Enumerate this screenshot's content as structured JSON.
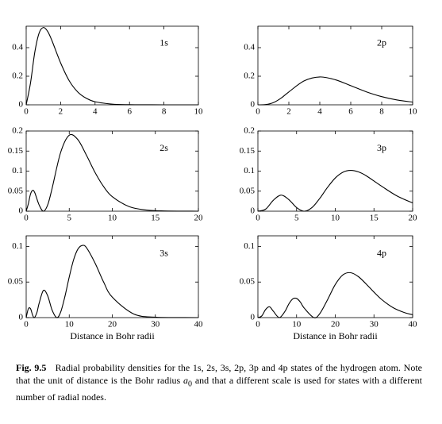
{
  "chart_data": [
    {
      "type": "line",
      "annotation": "1s",
      "color": "#000000",
      "x": [
        0,
        0.25,
        0.5,
        0.75,
        1,
        1.25,
        1.5,
        2,
        2.5,
        3,
        3.5,
        4,
        5,
        6,
        7,
        8,
        10
      ],
      "values": [
        0,
        0.152,
        0.368,
        0.502,
        0.541,
        0.513,
        0.448,
        0.293,
        0.168,
        0.089,
        0.045,
        0.0215,
        0.0045,
        0.0009,
        0.0002,
        0,
        0
      ],
      "xlim": [
        0,
        10
      ],
      "xticks": [
        0,
        2,
        4,
        6,
        8,
        10
      ],
      "ylim": [
        0,
        0.55
      ],
      "yticks": [
        0,
        0.2,
        0.4
      ]
    },
    {
      "type": "line",
      "annotation": "2p",
      "color": "#000000",
      "x": [
        0,
        0.5,
        1,
        1.5,
        2,
        3,
        4,
        5,
        6,
        7,
        8,
        9,
        10
      ],
      "values": [
        0,
        0.0016,
        0.0153,
        0.0471,
        0.0902,
        0.168,
        0.195,
        0.1755,
        0.1339,
        0.0912,
        0.0573,
        0.0337,
        0.0189
      ],
      "xlim": [
        0,
        10
      ],
      "xticks": [
        0,
        2,
        4,
        6,
        8,
        10
      ],
      "ylim": [
        0,
        0.55
      ],
      "yticks": [
        0,
        0.2,
        0.4
      ]
    },
    {
      "type": "line",
      "annotation": "2s",
      "color": "#000000",
      "x": [
        0,
        0.25,
        0.5,
        0.75,
        1,
        1.5,
        2,
        2.5,
        3,
        4,
        5,
        6,
        7,
        8,
        9,
        10,
        12,
        14,
        16,
        20
      ],
      "values": [
        0,
        0.0186,
        0.0426,
        0.0519,
        0.046,
        0.0157,
        0,
        0.016,
        0.056,
        0.1465,
        0.1895,
        0.1785,
        0.1396,
        0.0965,
        0.0612,
        0.0363,
        0.0111,
        0.0029,
        0.0007,
        0
      ],
      "xlim": [
        0,
        20
      ],
      "xticks": [
        0,
        5,
        10,
        15,
        20
      ],
      "ylim": [
        0,
        0.2
      ],
      "yticks": [
        0,
        0.05,
        0.1,
        0.15,
        0.2
      ]
    },
    {
      "type": "line",
      "annotation": "3p",
      "color": "#000000",
      "x": [
        0,
        1,
        2,
        3,
        4,
        5,
        6,
        7,
        8,
        9,
        10,
        11,
        12,
        13,
        14,
        16,
        18,
        20
      ],
      "values": [
        0,
        0.0052,
        0.0274,
        0.0401,
        0.0289,
        0.0091,
        0,
        0.0092,
        0.0321,
        0.0595,
        0.0828,
        0.0973,
        0.1018,
        0.098,
        0.0884,
        0.0622,
        0.0378,
        0.0207
      ],
      "xlim": [
        0,
        20
      ],
      "xticks": [
        0,
        5,
        10,
        15,
        20
      ],
      "ylim": [
        0,
        0.2
      ],
      "yticks": [
        0,
        0.05,
        0.1,
        0.15,
        0.2
      ]
    },
    {
      "type": "line",
      "annotation": "3s",
      "xlabel": "Distance in Bohr radii",
      "color": "#000000",
      "x": [
        0,
        0.5,
        1,
        1.5,
        1.9,
        2.5,
        3,
        4,
        5,
        6,
        7.1,
        8,
        9,
        10,
        11,
        12,
        13,
        14,
        16,
        18,
        20,
        25,
        30,
        35,
        40
      ],
      "values": [
        0,
        0.0125,
        0.0126,
        0.0034,
        0,
        0.0073,
        0.02,
        0.0382,
        0.0306,
        0.0109,
        0,
        0.0076,
        0.0298,
        0.0571,
        0.0811,
        0.0962,
        0.1014,
        0.0983,
        0.0766,
        0.0498,
        0.0287,
        0.005,
        0.0006,
        0.0001,
        0
      ],
      "xlim": [
        0,
        40
      ],
      "xticks": [
        0,
        10,
        20,
        30,
        40
      ],
      "ylim": [
        0,
        0.115
      ],
      "yticks": [
        0,
        0.05,
        0.1
      ]
    },
    {
      "type": "line",
      "annotation": "4p",
      "xlabel": "Distance in Bohr radii",
      "color": "#000000",
      "x": [
        0,
        1,
        2,
        3,
        4,
        5.53,
        7,
        8,
        9,
        10,
        11,
        12,
        14.47,
        16,
        18,
        20,
        22,
        24,
        26,
        28,
        30,
        32,
        35,
        38,
        40
      ],
      "values": [
        0,
        0.0023,
        0.0114,
        0.0152,
        0.0089,
        0,
        0.0088,
        0.0192,
        0.0263,
        0.027,
        0.0216,
        0.0132,
        0,
        0.0056,
        0.0251,
        0.0465,
        0.0602,
        0.0631,
        0.0575,
        0.0472,
        0.0358,
        0.0254,
        0.0138,
        0.0068,
        0.0041
      ],
      "xlim": [
        0,
        40
      ],
      "xticks": [
        0,
        10,
        20,
        30,
        40
      ],
      "ylim": [
        0,
        0.115
      ],
      "yticks": [
        0,
        0.05,
        0.1
      ]
    }
  ],
  "caption": {
    "label": "Fig. 9.5",
    "text_before": "Radial probability densities for the 1s, 2s, 3s, 2p, 3p and 4p states of the hydrogen atom. Note that the unit of distance is the Bohr radius",
    "symbol": "a",
    "subscript": "0",
    "text_after": "and that a different scale is used for states with a different number of radial nodes."
  }
}
